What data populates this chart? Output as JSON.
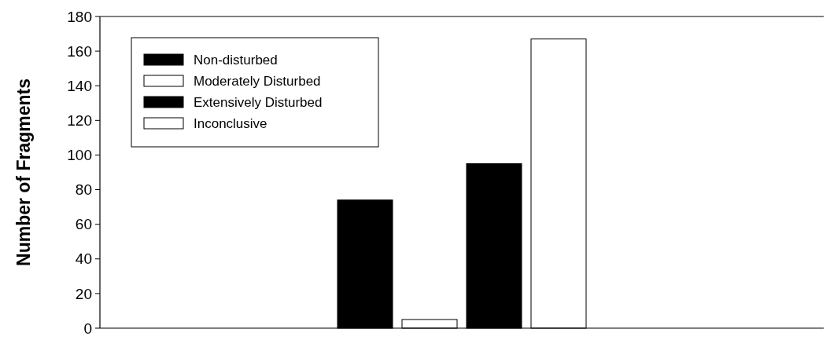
{
  "chart_data": {
    "type": "bar",
    "ylabel": "Number of Fragments",
    "categories": [
      null
    ],
    "series": [
      {
        "name": "Non-disturbed",
        "color": "#000000",
        "values": [
          74
        ]
      },
      {
        "name": "Moderately Disturbed",
        "color": "#ffffff",
        "values": [
          5
        ]
      },
      {
        "name": "Extensively Disturbed",
        "color": "#000000",
        "values": [
          95
        ]
      },
      {
        "name": "Inconclusive",
        "color": "#ffffff",
        "values": [
          167
        ]
      }
    ],
    "ylim": [
      0,
      180
    ],
    "yticks": [
      0,
      20,
      40,
      60,
      80,
      100,
      120,
      140,
      160,
      180
    ],
    "grid": false,
    "legend": "top left"
  }
}
